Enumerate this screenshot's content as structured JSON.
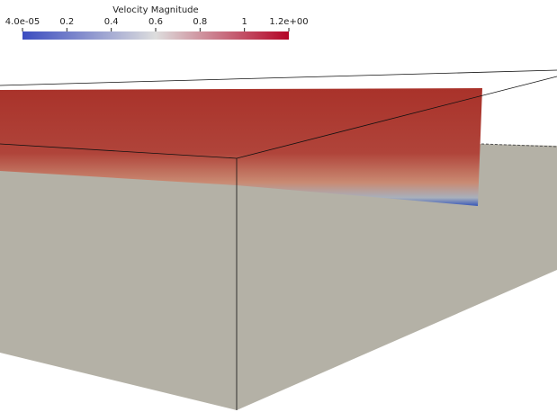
{
  "colorbar": {
    "title": "Velocity Magnitude",
    "lim": [
      4e-05,
      1.2
    ],
    "ticks": [
      {
        "value": 4e-05,
        "label": "4.0e-05"
      },
      0.2,
      0.4,
      0.6,
      0.8,
      1,
      {
        "value": 1.2,
        "label": "1.2e+00"
      }
    ],
    "colors": [
      "#3b4cc0",
      "#dddddd",
      "#b40426"
    ]
  }
}
